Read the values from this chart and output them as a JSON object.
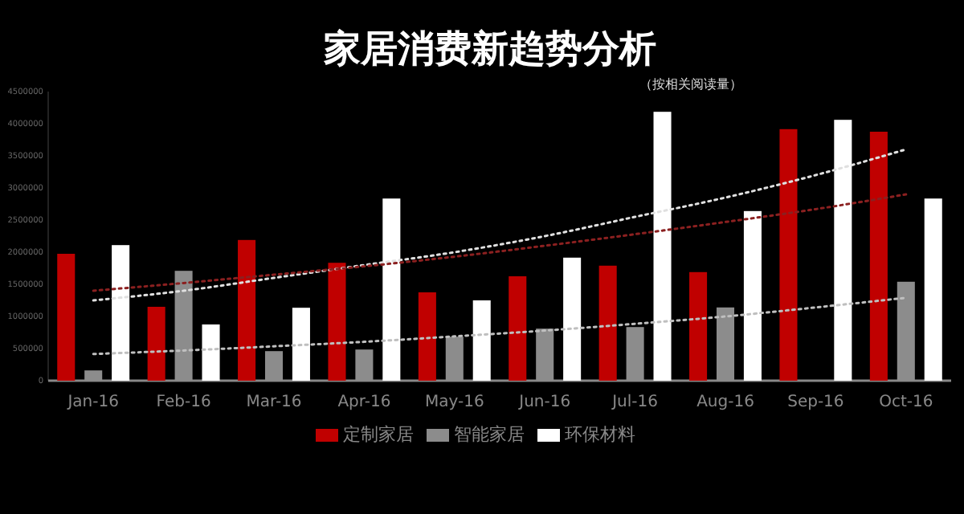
{
  "chart_data": {
    "type": "bar",
    "title": "家居消费新趋势分析",
    "subtitle": "（按相关阅读量）",
    "categories": [
      "Jan-16",
      "Feb-16",
      "Mar-16",
      "Apr-16",
      "May-16",
      "Jun-16",
      "Jul-16",
      "Aug-16",
      "Sep-16",
      "Oct-16"
    ],
    "series": [
      {
        "name": "定制家居",
        "color": "#c00000",
        "values": [
          1975000,
          1150000,
          2190000,
          1835000,
          1375000,
          1625000,
          1790000,
          1690000,
          3915000,
          3875000
        ]
      },
      {
        "name": "智能家居",
        "color": "#8c8c8c",
        "values": [
          160000,
          1710000,
          460000,
          485000,
          685000,
          810000,
          835000,
          1140000,
          null,
          1540000
        ]
      },
      {
        "name": "环保材料",
        "color": "#ffffff",
        "values": [
          2110000,
          875000,
          1135000,
          2835000,
          1250000,
          1915000,
          4185000,
          2640000,
          4060000,
          2835000
        ]
      },
      {
        "type": "line",
        "color": "#e0e0e0",
        "line_style": "dotted",
        "marker": "none",
        "values": [
          1250000,
          1400000,
          1600000,
          1800000,
          2000000,
          2250000,
          2550000,
          2850000,
          3200000,
          3600000
        ]
      },
      {
        "type": "line",
        "color": "#8b2020",
        "line_style": "dotted",
        "marker": "none",
        "values": [
          1400000,
          1520000,
          1650000,
          1780000,
          1930000,
          2100000,
          2280000,
          2470000,
          2670000,
          2900000
        ]
      },
      {
        "type": "line",
        "color": "#bfbfbf",
        "line_style": "dotted",
        "marker": "none",
        "values": [
          415000,
          470000,
          535000,
          605000,
          690000,
          780000,
          885000,
          1000000,
          1140000,
          1290000
        ]
      }
    ],
    "ylim": [
      0,
      4500000
    ],
    "yticks": [
      0,
      500000,
      1000000,
      1500000,
      2000000,
      2500000,
      3000000,
      3500000,
      4000000,
      4500000
    ],
    "grid": false,
    "legend": "bottom"
  }
}
